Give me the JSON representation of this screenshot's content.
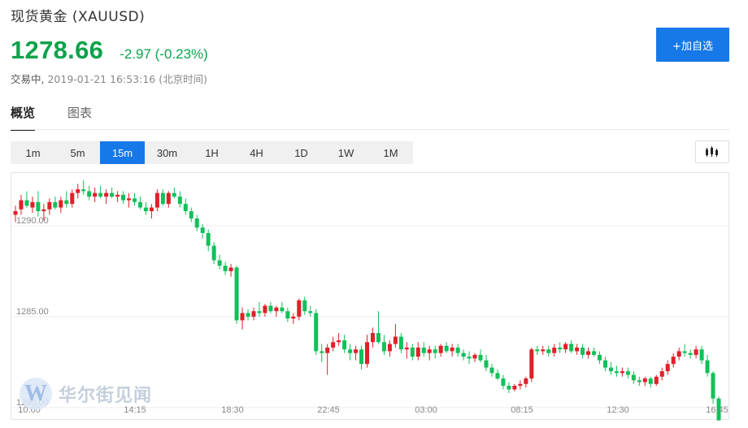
{
  "header": {
    "title": "现货黄金 (XAUUSD)",
    "price": "1278.66",
    "change": "-2.97 (-0.23%)",
    "status_label": "交易中,",
    "timestamp": "2019-01-21 16:53:16 (北京时间)",
    "add_button_label": "+加自选"
  },
  "tabs": [
    "概览",
    "图表"
  ],
  "intervals": [
    "1m",
    "5m",
    "15m",
    "30m",
    "1H",
    "4H",
    "1D",
    "1W",
    "1M"
  ],
  "active_interval": "15m",
  "colors": {
    "up": "#e02029",
    "down": "#12c05a",
    "accent": "#1778e8",
    "price": "#0aa34a"
  },
  "chart_type_icon": "candlestick-icon",
  "watermark": {
    "logo_letter": "W",
    "text": "华尔街见闻"
  },
  "chart_data": {
    "type": "candlestick",
    "ylim": [
      1279.95,
      1292.9
    ],
    "yticks": [
      1290.0,
      1285.0,
      1280.0
    ],
    "xticks": [
      "10:00",
      "14:15",
      "18:30",
      "22:45",
      "03:00",
      "08:15",
      "12:30",
      "16:45"
    ],
    "grid": true,
    "candles": [
      [
        1290.6,
        1291.1,
        1290.2,
        1290.8
      ],
      [
        1290.9,
        1291.7,
        1290.6,
        1291.4
      ],
      [
        1291.4,
        1291.9,
        1291.0,
        1291.1
      ],
      [
        1291.0,
        1291.6,
        1290.7,
        1291.3
      ],
      [
        1291.3,
        1291.9,
        1290.5,
        1290.8
      ],
      [
        1290.8,
        1291.2,
        1290.3,
        1290.9
      ],
      [
        1290.9,
        1291.5,
        1290.6,
        1291.3
      ],
      [
        1291.3,
        1291.6,
        1290.9,
        1291.0
      ],
      [
        1291.0,
        1291.6,
        1290.7,
        1291.4
      ],
      [
        1291.4,
        1291.9,
        1291.0,
        1291.2
      ],
      [
        1291.2,
        1292.0,
        1291.0,
        1291.8
      ],
      [
        1291.8,
        1292.3,
        1291.5,
        1292.0
      ],
      [
        1292.0,
        1292.5,
        1291.7,
        1291.9
      ],
      [
        1291.9,
        1292.2,
        1291.4,
        1291.6
      ],
      [
        1291.6,
        1292.1,
        1291.3,
        1291.8
      ],
      [
        1291.8,
        1292.2,
        1291.5,
        1291.6
      ],
      [
        1291.6,
        1292.0,
        1291.2,
        1291.8
      ],
      [
        1291.8,
        1292.1,
        1291.5,
        1291.6
      ],
      [
        1291.6,
        1291.9,
        1291.3,
        1291.7
      ],
      [
        1291.7,
        1291.9,
        1291.2,
        1291.4
      ],
      [
        1291.4,
        1291.8,
        1291.0,
        1291.5
      ],
      [
        1291.5,
        1291.8,
        1291.1,
        1291.3
      ],
      [
        1291.3,
        1291.6,
        1290.9,
        1291.0
      ],
      [
        1291.0,
        1291.3,
        1290.6,
        1290.8
      ],
      [
        1290.8,
        1291.2,
        1290.4,
        1291.0
      ],
      [
        1291.0,
        1292.0,
        1290.8,
        1291.8
      ],
      [
        1291.8,
        1292.0,
        1291.1,
        1291.2
      ],
      [
        1291.2,
        1291.9,
        1291.0,
        1291.8
      ],
      [
        1291.8,
        1292.1,
        1291.5,
        1291.6
      ],
      [
        1291.6,
        1291.9,
        1291.0,
        1291.2
      ],
      [
        1291.2,
        1291.5,
        1290.6,
        1290.8
      ],
      [
        1290.8,
        1291.0,
        1290.2,
        1290.4
      ],
      [
        1290.4,
        1290.6,
        1289.7,
        1289.9
      ],
      [
        1289.9,
        1290.1,
        1289.3,
        1289.6
      ],
      [
        1289.6,
        1289.8,
        1288.6,
        1288.9
      ],
      [
        1288.9,
        1289.1,
        1287.9,
        1288.1
      ],
      [
        1288.1,
        1288.4,
        1287.6,
        1287.8
      ],
      [
        1287.8,
        1288.0,
        1287.3,
        1287.5
      ],
      [
        1287.5,
        1287.9,
        1287.2,
        1287.7
      ],
      [
        1287.7,
        1287.8,
        1284.6,
        1284.8
      ],
      [
        1284.8,
        1285.5,
        1284.3,
        1285.2
      ],
      [
        1285.2,
        1285.4,
        1284.8,
        1285.0
      ],
      [
        1285.0,
        1285.5,
        1284.8,
        1285.3
      ],
      [
        1285.3,
        1285.8,
        1285.0,
        1285.2
      ],
      [
        1285.2,
        1285.7,
        1285.0,
        1285.6
      ],
      [
        1285.6,
        1285.8,
        1285.2,
        1285.3
      ],
      [
        1285.3,
        1285.6,
        1285.0,
        1285.5
      ],
      [
        1285.5,
        1285.8,
        1285.2,
        1285.3
      ],
      [
        1285.3,
        1285.5,
        1284.7,
        1284.9
      ],
      [
        1284.9,
        1285.2,
        1284.6,
        1285.0
      ],
      [
        1285.0,
        1286.0,
        1284.8,
        1285.9
      ],
      [
        1285.9,
        1286.1,
        1285.1,
        1285.3
      ],
      [
        1285.3,
        1285.6,
        1285.0,
        1285.2
      ],
      [
        1285.2,
        1285.4,
        1282.9,
        1283.1
      ],
      [
        1283.1,
        1283.5,
        1282.5,
        1283.0
      ],
      [
        1283.0,
        1283.5,
        1281.8,
        1283.3
      ],
      [
        1283.3,
        1283.9,
        1283.1,
        1283.6
      ],
      [
        1283.6,
        1284.1,
        1283.4,
        1283.7
      ],
      [
        1283.7,
        1284.0,
        1283.0,
        1283.2
      ],
      [
        1283.2,
        1283.5,
        1282.6,
        1283.0
      ],
      [
        1283.0,
        1283.4,
        1282.6,
        1283.2
      ],
      [
        1283.2,
        1283.4,
        1282.1,
        1282.4
      ],
      [
        1282.4,
        1284.0,
        1282.2,
        1283.6
      ],
      [
        1283.6,
        1284.4,
        1283.3,
        1284.1
      ],
      [
        1284.1,
        1285.3,
        1283.5,
        1283.6
      ],
      [
        1283.6,
        1284.0,
        1282.9,
        1283.1
      ],
      [
        1283.1,
        1283.7,
        1282.8,
        1283.5
      ],
      [
        1283.5,
        1284.6,
        1283.3,
        1283.9
      ],
      [
        1283.9,
        1284.1,
        1283.0,
        1283.2
      ],
      [
        1283.2,
        1283.6,
        1282.7,
        1283.3
      ],
      [
        1283.3,
        1283.5,
        1282.6,
        1282.8
      ],
      [
        1282.8,
        1283.6,
        1282.6,
        1283.3
      ],
      [
        1283.3,
        1283.6,
        1282.8,
        1283.0
      ],
      [
        1283.0,
        1283.4,
        1282.6,
        1283.2
      ],
      [
        1283.2,
        1283.4,
        1282.7,
        1283.0
      ],
      [
        1283.0,
        1283.5,
        1282.8,
        1283.4
      ],
      [
        1283.4,
        1283.6,
        1283.0,
        1283.1
      ],
      [
        1283.1,
        1283.5,
        1282.8,
        1283.3
      ],
      [
        1283.3,
        1283.5,
        1282.8,
        1283.0
      ],
      [
        1283.0,
        1283.2,
        1282.6,
        1282.8
      ],
      [
        1282.8,
        1283.1,
        1282.4,
        1282.7
      ],
      [
        1282.7,
        1283.0,
        1282.5,
        1282.9
      ],
      [
        1282.9,
        1283.2,
        1282.5,
        1282.6
      ],
      [
        1282.6,
        1282.9,
        1282.0,
        1282.2
      ],
      [
        1282.2,
        1282.4,
        1281.7,
        1281.9
      ],
      [
        1281.9,
        1282.1,
        1281.5,
        1281.6
      ],
      [
        1281.6,
        1281.8,
        1281.0,
        1281.2
      ],
      [
        1281.2,
        1281.4,
        1280.8,
        1281.0
      ],
      [
        1281.0,
        1281.3,
        1280.9,
        1281.2
      ],
      [
        1281.2,
        1281.5,
        1281.0,
        1281.3
      ],
      [
        1281.3,
        1281.7,
        1281.1,
        1281.6
      ],
      [
        1281.6,
        1283.3,
        1281.4,
        1283.2
      ],
      [
        1283.2,
        1283.4,
        1282.9,
        1283.1
      ],
      [
        1283.1,
        1283.4,
        1282.9,
        1283.2
      ],
      [
        1283.2,
        1283.4,
        1282.8,
        1283.0
      ],
      [
        1283.0,
        1283.5,
        1282.8,
        1283.3
      ],
      [
        1283.3,
        1283.6,
        1283.0,
        1283.2
      ],
      [
        1283.2,
        1283.6,
        1283.0,
        1283.5
      ],
      [
        1283.5,
        1283.7,
        1283.0,
        1283.1
      ],
      [
        1283.1,
        1283.5,
        1282.9,
        1283.3
      ],
      [
        1283.3,
        1283.5,
        1282.7,
        1282.9
      ],
      [
        1282.9,
        1283.3,
        1282.7,
        1283.1
      ],
      [
        1283.1,
        1283.3,
        1282.8,
        1282.9
      ],
      [
        1282.9,
        1283.1,
        1282.4,
        1282.6
      ],
      [
        1282.6,
        1282.8,
        1282.0,
        1282.2
      ],
      [
        1282.2,
        1282.5,
        1281.8,
        1282.0
      ],
      [
        1282.0,
        1282.3,
        1281.7,
        1281.9
      ],
      [
        1281.9,
        1282.2,
        1281.7,
        1282.0
      ],
      [
        1282.0,
        1282.2,
        1281.6,
        1281.8
      ],
      [
        1281.8,
        1282.0,
        1281.3,
        1281.5
      ],
      [
        1281.5,
        1281.7,
        1281.2,
        1281.4
      ],
      [
        1281.4,
        1281.7,
        1281.2,
        1281.6
      ],
      [
        1281.6,
        1281.7,
        1281.1,
        1281.3
      ],
      [
        1281.3,
        1281.8,
        1281.2,
        1281.7
      ],
      [
        1281.7,
        1282.2,
        1281.5,
        1282.0
      ],
      [
        1282.0,
        1282.6,
        1281.8,
        1282.4
      ],
      [
        1282.4,
        1283.0,
        1282.2,
        1282.8
      ],
      [
        1282.8,
        1283.3,
        1282.6,
        1283.1
      ],
      [
        1283.1,
        1283.5,
        1282.8,
        1283.0
      ],
      [
        1283.0,
        1283.2,
        1282.7,
        1282.9
      ],
      [
        1282.9,
        1283.4,
        1282.7,
        1283.2
      ],
      [
        1283.2,
        1283.4,
        1282.4,
        1282.6
      ],
      [
        1282.6,
        1282.9,
        1281.7,
        1281.9
      ],
      [
        1281.9,
        1282.0,
        1280.2,
        1280.5
      ],
      [
        1280.5,
        1280.6,
        1279.2,
        1279.3
      ]
    ]
  }
}
